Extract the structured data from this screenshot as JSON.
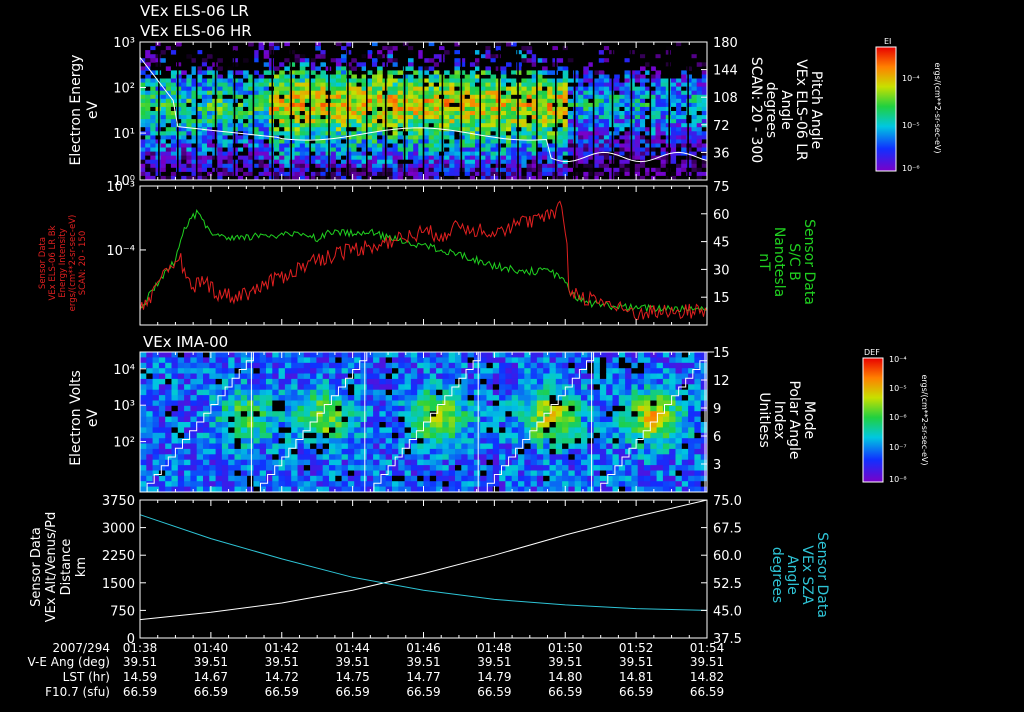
{
  "header": {
    "line1": "VEx ELS-06 LR",
    "line2": "VEx ELS-06 HR"
  },
  "chart_data": [
    {
      "type": "heatmap",
      "panel": "els-spectrogram",
      "ylabel": [
        "Electron Energy",
        "eV"
      ],
      "yticks": [
        "10³",
        "10²",
        "10¹",
        "10⁰"
      ],
      "ylim": [
        1,
        1000
      ],
      "y_scale": "log",
      "right_ylabel": [
        "Pitch Angle",
        "VEx ELS-06 LR",
        "Angle",
        "degrees",
        "SCAN: 20 - 300"
      ],
      "right_ylim": [
        0,
        180
      ],
      "right_yticks": [
        "180",
        "144",
        "108",
        "72",
        "36"
      ],
      "colorbar": {
        "label": "EI",
        "unit": "ergs/(cm**2-sr-sec-eV)",
        "ticks": [
          "10⁻⁴",
          "10⁻⁵",
          "10⁻⁶"
        ]
      }
    },
    {
      "type": "line",
      "panel": "els-intensity",
      "ylabel": [
        "Sensor Data",
        "VEx ELS-06 LR Bk",
        "Energy Intensity",
        "ergs/(cm**2-sr-sec-eV)",
        "SCAN: 20 - 150"
      ],
      "y_scale": "log",
      "yticks": [
        "10⁻³",
        "10⁻⁴"
      ],
      "right_ylabel": [
        "Sensor Data",
        "S/C B",
        "Nanotesla",
        "nT"
      ],
      "right_ylim": [
        0,
        75
      ],
      "right_yticks": [
        "75",
        "60",
        "45",
        "30",
        "15"
      ],
      "series": [
        {
          "name": "VEx ELS-06 LR Bk",
          "color": "#e02020",
          "t_minutes": [
            0,
            0.5,
            0.8,
            1.1,
            1.4,
            1.8,
            2.2,
            2.6,
            3.0,
            3.5,
            4.0,
            4.5,
            5.0,
            5.5,
            6.0,
            6.5,
            7.0,
            7.5,
            8.0,
            8.5,
            9.0,
            9.5,
            10.0,
            10.5,
            11.0,
            11.5,
            11.9,
            12.1,
            12.5,
            13.0,
            13.5,
            14.0,
            14.5,
            15.0,
            15.5,
            16.0
          ],
          "values_e4": [
            0.32,
            0.55,
            0.95,
            1.4,
            0.6,
            0.7,
            0.5,
            0.45,
            0.5,
            0.6,
            0.8,
            1.0,
            1.3,
            1.5,
            1.7,
            1.9,
            2.1,
            2.4,
            2.8,
            2.6,
            3.2,
            3.0,
            2.9,
            3.3,
            3.8,
            4.2,
            5.5,
            0.55,
            0.45,
            0.4,
            0.32,
            0.28,
            0.3,
            0.28,
            0.3,
            0.3
          ]
        },
        {
          "name": "S/C B",
          "color": "#20d020",
          "t_minutes": [
            0,
            0.5,
            1.0,
            1.3,
            1.6,
            2.0,
            2.5,
            3.0,
            3.5,
            4.0,
            4.5,
            5.0,
            5.5,
            6.0,
            6.5,
            7.0,
            7.5,
            8.0,
            8.5,
            9.0,
            9.5,
            10.0,
            10.5,
            11.0,
            11.5,
            11.9,
            12.2,
            12.6,
            13.0,
            13.5,
            14.0,
            14.5,
            15.0,
            15.5,
            16.0
          ],
          "values": [
            9,
            22,
            35,
            54,
            60,
            50,
            46,
            47,
            49,
            48,
            50,
            47,
            51,
            49,
            50,
            47,
            45,
            43,
            40,
            38,
            35,
            32,
            30,
            29,
            29,
            26,
            16,
            12,
            11,
            10,
            9,
            9,
            9,
            9,
            9
          ]
        }
      ]
    },
    {
      "type": "heatmap",
      "panel": "ima-spectrogram",
      "title": "VEx IMA-00",
      "ylabel": [
        "Electron Volts",
        "eV"
      ],
      "yticks": [
        "10⁴",
        "10³",
        "10²"
      ],
      "ylim": [
        10,
        31623
      ],
      "y_scale": "log",
      "right_ylabel": [
        "Mode",
        "Polar Angle",
        "Index",
        "Unitless"
      ],
      "right_ylim": [
        0,
        15
      ],
      "right_yticks": [
        "15",
        "12",
        "9",
        "6",
        "3"
      ],
      "colorbar": {
        "label": "DEF",
        "unit": "ergs/(cm**2-sr-sec-eV)",
        "ticks": [
          "10⁻⁴",
          "10⁻⁵",
          "10⁻⁶",
          "10⁻⁷",
          "10⁻⁸"
        ]
      }
    },
    {
      "type": "line",
      "panel": "position",
      "ylabel": [
        "Sensor Data",
        "VEx Alt/Venus/Pd",
        "Distance",
        "km"
      ],
      "ylim": [
        0,
        3750
      ],
      "yticks": [
        "3750",
        "3000",
        "2250",
        "1500",
        "750",
        "0"
      ],
      "right_ylabel": [
        "Sensor Data",
        "VEx SZA",
        "Angle",
        "degrees"
      ],
      "right_ylim": [
        37.5,
        75.0
      ],
      "right_yticks": [
        "75.0",
        "67.5",
        "60.0",
        "52.5",
        "45.0",
        "37.5"
      ],
      "series": [
        {
          "name": "VEx Alt/Venus/Pd",
          "color": "#ffffff",
          "t_minutes": [
            0,
            2,
            4,
            6,
            8,
            10,
            12,
            14,
            16
          ],
          "values": [
            500,
            700,
            950,
            1300,
            1750,
            2250,
            2800,
            3300,
            3750
          ]
        },
        {
          "name": "VEx SZA",
          "color": "#2ec4d6",
          "t_minutes": [
            0,
            2,
            4,
            6,
            8,
            10,
            12,
            14,
            16
          ],
          "values": [
            71.0,
            64.5,
            59.0,
            54.0,
            50.5,
            48.0,
            46.5,
            45.5,
            45.0
          ]
        }
      ]
    }
  ],
  "ephemeris": {
    "row_labels": [
      "2007/294",
      "V-E Ang (deg)",
      "LST (hr)",
      "F10.7 (sfu)"
    ],
    "times": [
      "01:38",
      "01:40",
      "01:42",
      "01:44",
      "01:46",
      "01:48",
      "01:50",
      "01:52",
      "01:54"
    ],
    "ve_ang": [
      "39.51",
      "39.51",
      "39.51",
      "39.51",
      "39.51",
      "39.51",
      "39.51",
      "39.51",
      "39.51"
    ],
    "lst": [
      "14.59",
      "14.67",
      "14.72",
      "14.75",
      "14.77",
      "14.79",
      "14.80",
      "14.81",
      "14.82"
    ],
    "f107": [
      "66.59",
      "66.59",
      "66.59",
      "66.59",
      "66.59",
      "66.59",
      "66.59",
      "66.59",
      "66.59"
    ]
  }
}
